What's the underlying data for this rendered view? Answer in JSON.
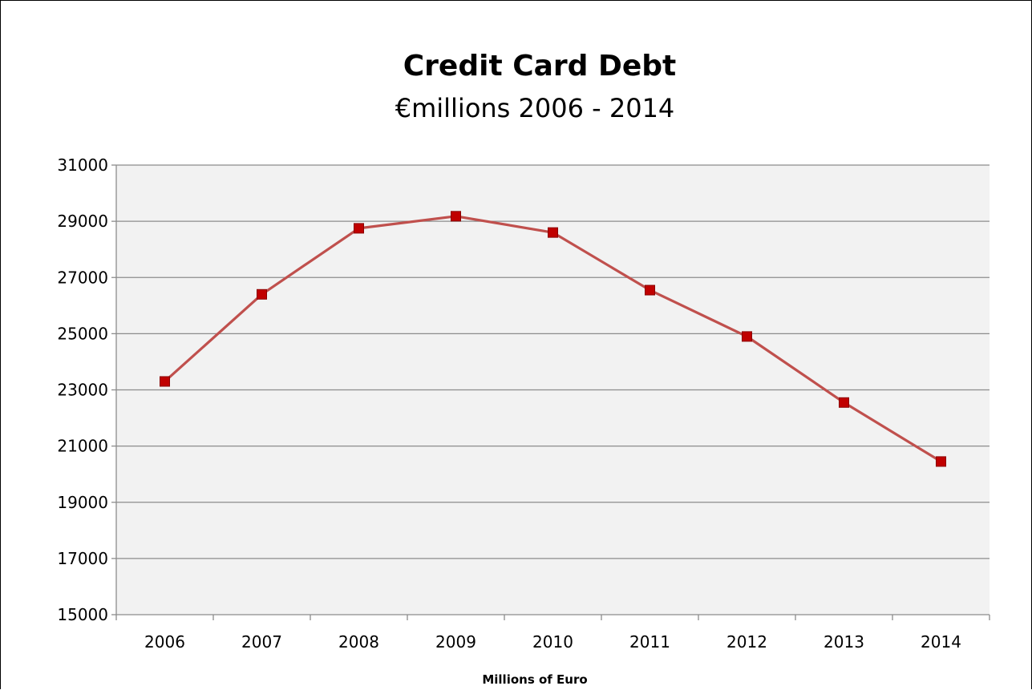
{
  "chart_data": {
    "type": "line",
    "title": "Credit Card Debt",
    "subtitle": "€millions 2006 - 2014",
    "xlabel": "Millions of Euro",
    "ylabel": "",
    "categories": [
      "2006",
      "2007",
      "2008",
      "2009",
      "2010",
      "2011",
      "2012",
      "2013",
      "2014"
    ],
    "series": [
      {
        "values": [
          23300,
          26400,
          28750,
          29180,
          28600,
          26550,
          24900,
          22550,
          20450
        ],
        "color": "#C0504D",
        "marker_color": "#C00000",
        "marker": "square"
      }
    ],
    "ylim": [
      15000,
      31000
    ],
    "yticks": [
      "15000",
      "17000",
      "19000",
      "21000",
      "23000",
      "25000",
      "27000",
      "29000",
      "31000"
    ],
    "grid": true,
    "plot_background": "#F2F2F2",
    "legend": "none"
  }
}
